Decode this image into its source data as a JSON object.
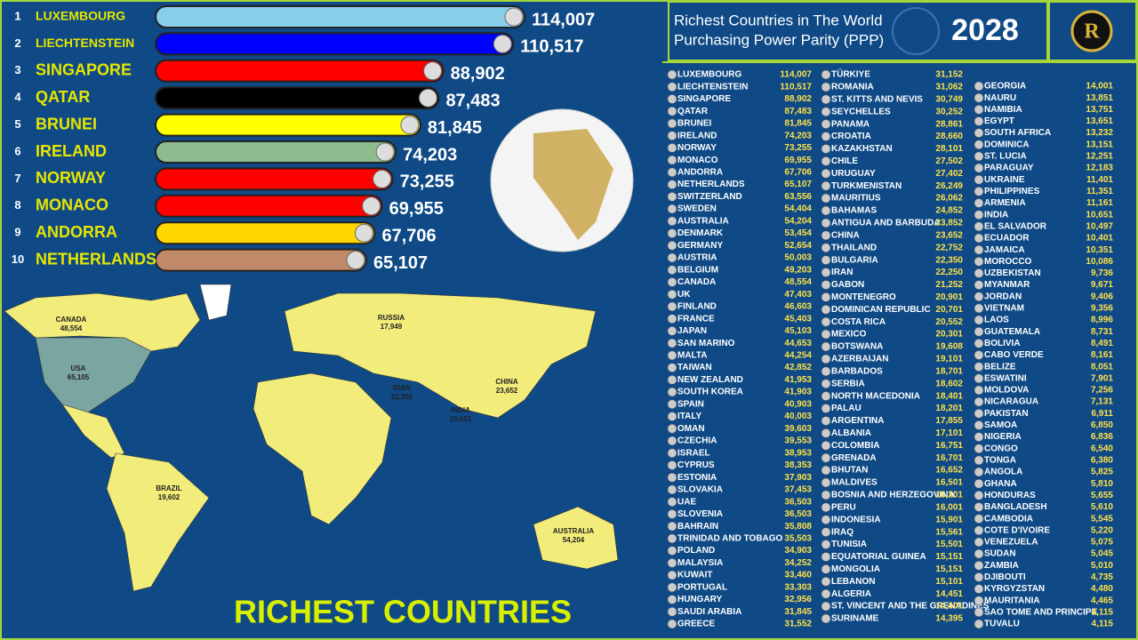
{
  "chart_data": {
    "type": "bar",
    "orientation": "horizontal",
    "ranks": [
      1,
      2,
      3,
      4,
      5,
      6,
      7,
      8,
      9,
      10
    ],
    "categories": [
      "LUXEMBOURG",
      "LIECHTENSTEIN",
      "SINGAPORE",
      "QATAR",
      "BRUNEI",
      "IRELAND",
      "NORWAY",
      "MONACO",
      "ANDORRA",
      "NETHERLANDS"
    ],
    "values": [
      114007,
      110517,
      88902,
      87483,
      81845,
      74203,
      73255,
      69955,
      67706,
      65107
    ],
    "value_labels": [
      "114,007",
      "110,517",
      "88,902",
      "87,483",
      "81,845",
      "74,203",
      "73,255",
      "69,955",
      "67,706",
      "65,107"
    ],
    "colors": [
      "#87ceeb",
      "#0000ff",
      "#ff0000",
      "#000000",
      "#ffff00",
      "#8fbc8f",
      "#ff0000",
      "#ff0000",
      "#ffd700",
      "#c08a68"
    ]
  },
  "header": {
    "title": "Richest Countries in The World",
    "subtitle": "Purchasing Power Parity (PPP)",
    "year": "2028",
    "logo": "R"
  },
  "list": {
    "columns": [
      [
        [
          "LUXEMBOURG",
          "114,007"
        ],
        [
          "LIECHTENSTEIN",
          "110,517"
        ],
        [
          "SINGAPORE",
          "88,902"
        ],
        [
          "QATAR",
          "87,483"
        ],
        [
          "BRUNEI",
          "81,845"
        ],
        [
          "IRELAND",
          "74,203"
        ],
        [
          "NORWAY",
          "73,255"
        ],
        [
          "MONACO",
          "69,955"
        ],
        [
          "ANDORRA",
          "67,706"
        ],
        [
          "NETHERLANDS",
          "65,107"
        ],
        [
          "SWITZERLAND",
          "63,556"
        ],
        [
          "SWEDEN",
          "54,404"
        ],
        [
          "AUSTRALIA",
          "54,204"
        ],
        [
          "DENMARK",
          "53,454"
        ],
        [
          "GERMANY",
          "52,654"
        ],
        [
          "AUSTRIA",
          "50,003"
        ],
        [
          "BELGIUM",
          "49,203"
        ],
        [
          "CANADA",
          "48,554"
        ],
        [
          "UK",
          "47,403"
        ],
        [
          "FINLAND",
          "46,603"
        ],
        [
          "FRANCE",
          "45,403"
        ],
        [
          "JAPAN",
          "45,103"
        ],
        [
          "SAN MARINO",
          "44,653"
        ],
        [
          "MALTA",
          "44,254"
        ],
        [
          "TAIWAN",
          "42,852"
        ],
        [
          "NEW ZEALAND",
          "41,953"
        ],
        [
          "SOUTH KOREA",
          "41,903"
        ],
        [
          "SPAIN",
          "40,903"
        ],
        [
          "ITALY",
          "40,003"
        ],
        [
          "OMAN",
          "39,603"
        ],
        [
          "CZECHIA",
          "39,553"
        ],
        [
          "ISRAEL",
          "38,953"
        ],
        [
          "CYPRUS",
          "38,353"
        ],
        [
          "ESTONIA",
          "37,903"
        ],
        [
          "SLOVAKIA",
          "37,453"
        ],
        [
          "UAE",
          "36,503"
        ],
        [
          "SLOVENIA",
          "36,503"
        ],
        [
          "BAHRAIN",
          "35,808"
        ],
        [
          "TRINIDAD AND TOBAGO",
          "35,503"
        ],
        [
          "POLAND",
          "34,903"
        ],
        [
          "MALAYSIA",
          "34,252"
        ],
        [
          "KUWAIT",
          "33,460"
        ],
        [
          "PORTUGAL",
          "33,303"
        ],
        [
          "HUNGARY",
          "32,956"
        ],
        [
          "SAUDI ARABIA",
          "31,845"
        ],
        [
          "GREECE",
          "31,552"
        ]
      ],
      [
        [
          "TÜRKIYE",
          "31,152"
        ],
        [
          "ROMANIA",
          "31,062"
        ],
        [
          "ST. KITTS AND NEVIS",
          "30,749"
        ],
        [
          "SEYCHELLES",
          "30,252"
        ],
        [
          "PANAMA",
          "28,861"
        ],
        [
          "CROATIA",
          "28,660"
        ],
        [
          "KAZAKHSTAN",
          "28,101"
        ],
        [
          "CHILE",
          "27,502"
        ],
        [
          "URUGUAY",
          "27,402"
        ],
        [
          "TURKMENISTAN",
          "26,249"
        ],
        [
          "MAURITIUS",
          "26,062"
        ],
        [
          "BAHAMAS",
          "24,852"
        ],
        [
          "ANTIGUA AND BARBUDA",
          "23,852"
        ],
        [
          "CHINA",
          "23,652"
        ],
        [
          "THAILAND",
          "22,752"
        ],
        [
          "BULGARIA",
          "22,350"
        ],
        [
          "IRAN",
          "22,250"
        ],
        [
          "GABON",
          "21,252"
        ],
        [
          "MONTENEGRO",
          "20,901"
        ],
        [
          "DOMINICAN REPUBLIC",
          "20,701"
        ],
        [
          "COSTA RICA",
          "20,552"
        ],
        [
          "MEXICO",
          "20,301"
        ],
        [
          "BOTSWANA",
          "19,608"
        ],
        [
          "AZERBAIJAN",
          "19,101"
        ],
        [
          "BARBADOS",
          "18,701"
        ],
        [
          "SERBIA",
          "18,602"
        ],
        [
          "NORTH MACEDONIA",
          "18,401"
        ],
        [
          "PALAU",
          "18,201"
        ],
        [
          "ARGENTINA",
          "17,855"
        ],
        [
          "ALBANIA",
          "17,101"
        ],
        [
          "COLOMBIA",
          "16,751"
        ],
        [
          "GRENADA",
          "16,701"
        ],
        [
          "BHUTAN",
          "16,652"
        ],
        [
          "MALDIVES",
          "16,501"
        ],
        [
          "BOSNIA AND HERZEGOVINA",
          "16,201"
        ],
        [
          "PERU",
          "16,001"
        ],
        [
          "INDONESIA",
          "15,901"
        ],
        [
          "IRAQ",
          "15,561"
        ],
        [
          "TUNISIA",
          "15,501"
        ],
        [
          "EQUATORIAL GUINEA",
          "15,151"
        ],
        [
          "MONGOLIA",
          "15,151"
        ],
        [
          "LEBANON",
          "15,101"
        ],
        [
          "ALGERIA",
          "14,451"
        ],
        [
          "ST. VINCENT AND THE GRENADINES",
          "14,401"
        ],
        [
          "SURINAME",
          "14,395"
        ]
      ],
      [
        [
          "GEORGIA",
          "14,001"
        ],
        [
          "NAURU",
          "13,851"
        ],
        [
          "NAMIBIA",
          "13,751"
        ],
        [
          "EGYPT",
          "13,651"
        ],
        [
          "SOUTH AFRICA",
          "13,232"
        ],
        [
          "DOMINICA",
          "13,151"
        ],
        [
          "ST. LUCIA",
          "12,251"
        ],
        [
          "PARAGUAY",
          "12,183"
        ],
        [
          "UKRAINE",
          "11,401"
        ],
        [
          "PHILIPPINES",
          "11,351"
        ],
        [
          "ARMENIA",
          "11,161"
        ],
        [
          "INDIA",
          "10,651"
        ],
        [
          "EL SALVADOR",
          "10,497"
        ],
        [
          "ECUADOR",
          "10,401"
        ],
        [
          "JAMAICA",
          "10,351"
        ],
        [
          "MOROCCO",
          "10,086"
        ],
        [
          "UZBEKISTAN",
          "9,736"
        ],
        [
          "MYANMAR",
          "9,671"
        ],
        [
          "JORDAN",
          "9,406"
        ],
        [
          "VIETNAM",
          "9,356"
        ],
        [
          "LAOS",
          "8,996"
        ],
        [
          "GUATEMALA",
          "8,731"
        ],
        [
          "BOLIVIA",
          "8,491"
        ],
        [
          "CABO VERDE",
          "8,161"
        ],
        [
          "BELIZE",
          "8,051"
        ],
        [
          "ESWATINI",
          "7,901"
        ],
        [
          "MOLDOVA",
          "7,256"
        ],
        [
          "NICARAGUA",
          "7,131"
        ],
        [
          "PAKISTAN",
          "6,911"
        ],
        [
          "SAMOA",
          "6,850"
        ],
        [
          "NIGERIA",
          "6,836"
        ],
        [
          "CONGO",
          "6,540"
        ],
        [
          "TONGA",
          "6,380"
        ],
        [
          "ANGOLA",
          "5,825"
        ],
        [
          "GHANA",
          "5,810"
        ],
        [
          "HONDURAS",
          "5,655"
        ],
        [
          "BANGLADESH",
          "5,610"
        ],
        [
          "CAMBODIA",
          "5,545"
        ],
        [
          "COTE D'IVOIRE",
          "5,220"
        ],
        [
          "VENEZUELA",
          "5,075"
        ],
        [
          "SUDAN",
          "5,045"
        ],
        [
          "ZAMBIA",
          "5,010"
        ],
        [
          "DJIBOUTI",
          "4,735"
        ],
        [
          "KYRGYZSTAN",
          "4,480"
        ],
        [
          "MAURITANIA",
          "4,465"
        ],
        [
          "SAO TOME AND PRINCIPE",
          "4,115"
        ],
        [
          "TUVALU",
          "4,115"
        ]
      ]
    ]
  },
  "map_labels": [
    [
      "CANADA",
      "48,554"
    ],
    [
      "USA",
      "65,105"
    ],
    [
      "RUSSIA",
      "17,949"
    ],
    [
      "CHINA",
      "23,652"
    ],
    [
      "IRAN",
      "22,250"
    ],
    [
      "INDIA",
      "10,651"
    ],
    [
      "BRAZIL",
      "19,602"
    ],
    [
      "AUSTRALIA",
      "54,204"
    ]
  ],
  "banner": "RICHEST COUNTRIES"
}
